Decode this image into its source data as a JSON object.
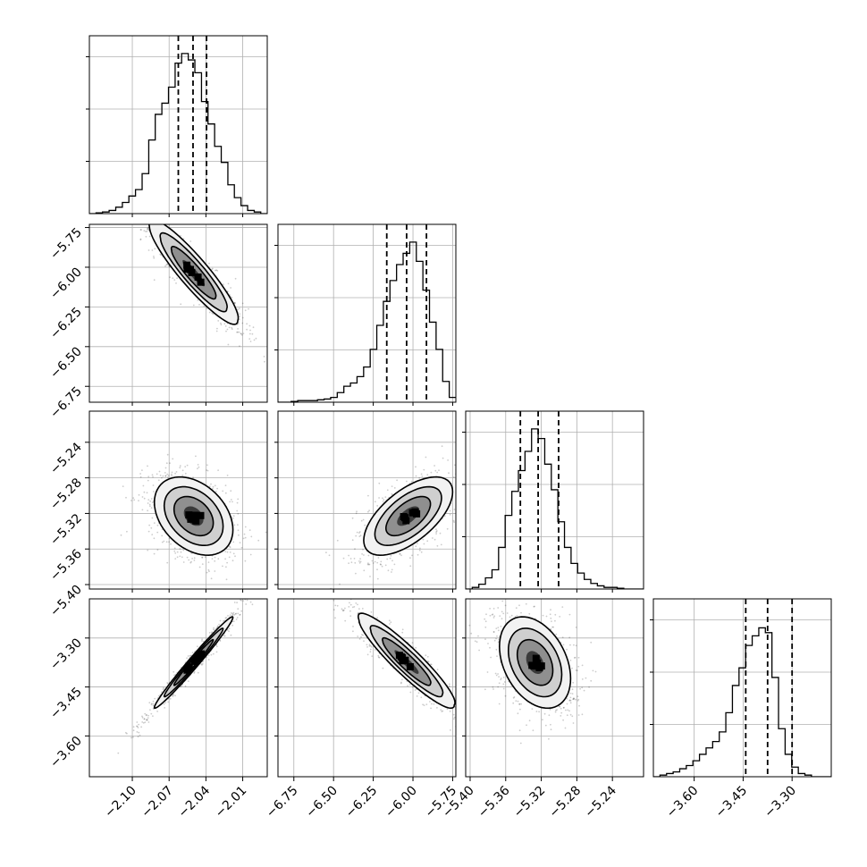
{
  "chart_data": {
    "type": "corner",
    "n_params": 4,
    "labels": [
      "",
      "",
      "",
      ""
    ],
    "grid": true,
    "colors": {
      "frame": "#000000",
      "grid": "#b0b0b0",
      "hist": "#000000",
      "quantile": "#000000",
      "scatter": "#000000"
    },
    "param_ranges": [
      [
        -2.135,
        -1.99
      ],
      [
        -6.85,
        -5.73
      ],
      [
        -5.405,
        -5.205
      ],
      [
        -3.725,
        -3.18
      ]
    ],
    "tick_values": [
      [
        -2.1,
        -2.07,
        -2.04,
        -2.01
      ],
      [
        -6.75,
        -6.5,
        -6.25,
        -6.0,
        -5.75
      ],
      [
        -5.4,
        -5.36,
        -5.32,
        -5.28,
        -5.24
      ],
      [
        -3.6,
        -3.45,
        -3.3
      ]
    ],
    "tick_labels": [
      [
        "−2.10",
        "−2.07",
        "−2.04",
        "−2.01"
      ],
      [
        "−6.75",
        "−6.50",
        "−6.25",
        "−6.00",
        "−5.75"
      ],
      [
        "−5.40",
        "−5.36",
        "−5.32",
        "−5.28",
        "−5.24"
      ],
      [
        "−3.60",
        "−3.45",
        "−3.30"
      ]
    ],
    "marginals": [
      {
        "param_index": 0,
        "bin_edges": [
          -2.135,
          -2.1296,
          -2.1243,
          -2.1189,
          -2.1135,
          -2.1081,
          -2.1028,
          -2.0974,
          -2.092,
          -2.0866,
          -2.0813,
          -2.0759,
          -2.0705,
          -2.0651,
          -2.0598,
          -2.0544,
          -2.049,
          -2.0436,
          -2.0383,
          -2.0329,
          -2.0275,
          -2.0221,
          -2.0168,
          -2.0114,
          -2.006,
          -2.0006,
          -1.9953,
          -1.99
        ],
        "counts": [
          0.0,
          0.005,
          0.01,
          0.02,
          0.04,
          0.07,
          0.11,
          0.15,
          0.25,
          0.46,
          0.62,
          0.69,
          0.79,
          0.94,
          1.0,
          0.96,
          0.88,
          0.7,
          0.56,
          0.42,
          0.32,
          0.18,
          0.1,
          0.05,
          0.02,
          0.01,
          0.0
        ],
        "quantiles": [
          -2.0625,
          -2.0505,
          -2.0395
        ]
      },
      {
        "param_index": 1,
        "bin_edges": [
          -6.85,
          -6.8085,
          -6.767,
          -6.7256,
          -6.6841,
          -6.6426,
          -6.6011,
          -6.5596,
          -6.5181,
          -6.4767,
          -6.4352,
          -6.3937,
          -6.3522,
          -6.3107,
          -6.2693,
          -6.2278,
          -6.1863,
          -6.1448,
          -6.1033,
          -6.0619,
          -6.0204,
          -5.9789,
          -5.9374,
          -5.8959,
          -5.8544,
          -5.813,
          -5.7715,
          -5.73
        ],
        "counts": [
          0.0,
          0.0,
          0.005,
          0.01,
          0.01,
          0.01,
          0.015,
          0.02,
          0.03,
          0.06,
          0.1,
          0.12,
          0.16,
          0.22,
          0.33,
          0.48,
          0.63,
          0.76,
          0.86,
          0.93,
          1.0,
          0.88,
          0.7,
          0.5,
          0.33,
          0.13,
          0.03
        ],
        "quantiles": [
          -6.165,
          -6.04,
          -5.915
        ]
      },
      {
        "param_index": 2,
        "bin_edges": [
          -5.405,
          -5.3976,
          -5.3902,
          -5.3828,
          -5.3754,
          -5.368,
          -5.3606,
          -5.3531,
          -5.3457,
          -5.3383,
          -5.3309,
          -5.3235,
          -5.3161,
          -5.3087,
          -5.3013,
          -5.2939,
          -5.2865,
          -5.2791,
          -5.2717,
          -5.2643,
          -5.2569,
          -5.2494,
          -5.242,
          -5.2346,
          -5.2272,
          -5.2198,
          -5.2124,
          -5.205
        ],
        "counts": [
          0.0,
          0.01,
          0.03,
          0.07,
          0.12,
          0.26,
          0.46,
          0.61,
          0.74,
          0.86,
          1.0,
          0.94,
          0.78,
          0.62,
          0.42,
          0.26,
          0.16,
          0.1,
          0.06,
          0.035,
          0.02,
          0.01,
          0.01,
          0.005,
          0.0,
          0.0,
          0.0
        ],
        "quantiles": [
          -5.3435,
          -5.3235,
          -5.3005
        ]
      },
      {
        "param_index": 3,
        "bin_edges": [
          -3.725,
          -3.7048,
          -3.6846,
          -3.6644,
          -3.6443,
          -3.6241,
          -3.6039,
          -3.5837,
          -3.5635,
          -3.5433,
          -3.5231,
          -3.503,
          -3.4828,
          -3.4626,
          -3.4424,
          -3.4222,
          -3.402,
          -3.3819,
          -3.3617,
          -3.3415,
          -3.3213,
          -3.3011,
          -3.2809,
          -3.2607,
          -3.2406,
          -3.2204,
          -3.2002,
          -3.18
        ],
        "counts": [
          0.0,
          0.01,
          0.02,
          0.03,
          0.05,
          0.07,
          0.1,
          0.14,
          0.18,
          0.22,
          0.28,
          0.4,
          0.57,
          0.68,
          0.82,
          0.88,
          0.93,
          0.9,
          0.62,
          0.3,
          0.14,
          0.06,
          0.02,
          0.01,
          0.0,
          0.0,
          0.0
        ],
        "quantiles": [
          -3.442,
          -3.375,
          -3.3
        ]
      }
    ],
    "joints": [
      {
        "x_param": 0,
        "y_param": 1,
        "mean": [
          -2.05,
          -6.04
        ],
        "sd": [
          0.018,
          0.16
        ],
        "rho": -0.92,
        "skew": 0.25
      },
      {
        "x_param": 0,
        "y_param": 2,
        "mean": [
          -2.05,
          -5.323
        ],
        "sd": [
          0.016,
          0.022
        ],
        "rho": -0.35,
        "skew": 0.0
      },
      {
        "x_param": 1,
        "y_param": 2,
        "mean": [
          -6.03,
          -5.323
        ],
        "sd": [
          0.14,
          0.022
        ],
        "rho": 0.62,
        "skew": 0.0
      },
      {
        "x_param": 0,
        "y_param": 3,
        "mean": [
          -2.05,
          -3.375
        ],
        "sd": [
          0.016,
          0.07
        ],
        "rho": 0.985,
        "skew": 0.0
      },
      {
        "x_param": 1,
        "y_param": 3,
        "mean": [
          -6.04,
          -3.375
        ],
        "sd": [
          0.15,
          0.07
        ],
        "rho": -0.93,
        "skew": 0.3
      },
      {
        "x_param": 2,
        "y_param": 3,
        "mean": [
          -5.327,
          -3.375
        ],
        "sd": [
          0.02,
          0.07
        ],
        "rho": -0.35,
        "skew": 0.0
      }
    ],
    "contour_levels_sigma": [
      0.5,
      1.0,
      1.5,
      2.0
    ]
  }
}
